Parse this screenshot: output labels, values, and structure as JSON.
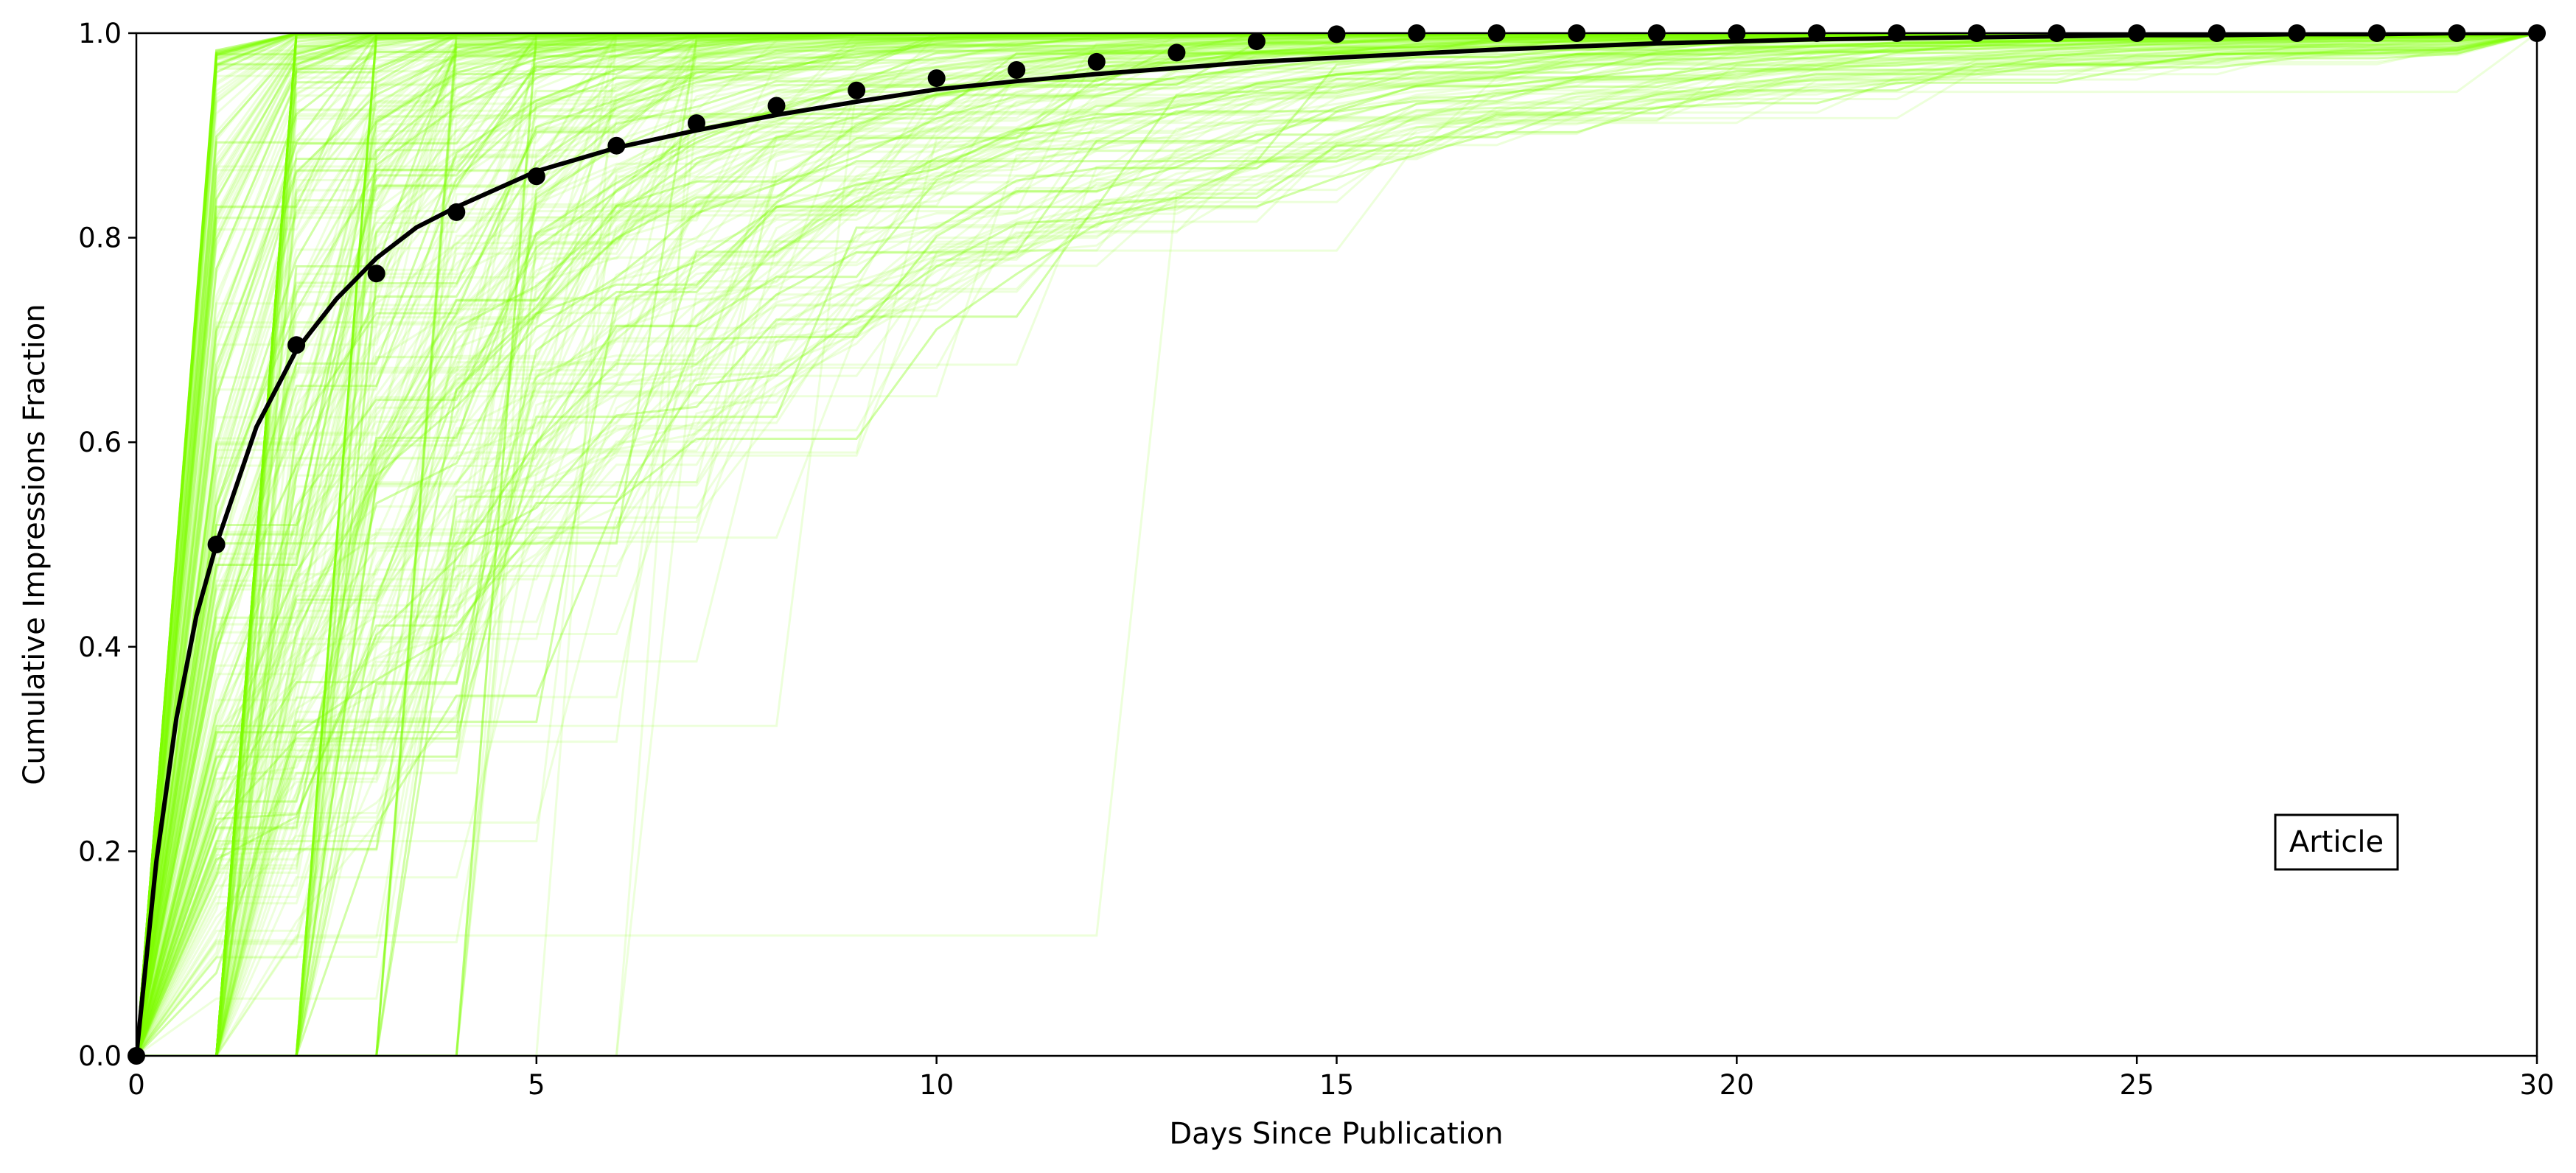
{
  "chart_data": {
    "type": "line",
    "title": "",
    "xlabel": "Days Since Publication",
    "ylabel": "Cumulative Impressions Fraction",
    "xlim": [
      0,
      30
    ],
    "ylim": [
      0,
      1
    ],
    "x_ticks": [
      0,
      5,
      10,
      15,
      20,
      25,
      30
    ],
    "y_ticks": [
      0.0,
      0.2,
      0.4,
      0.6,
      0.8,
      1.0
    ],
    "grid": false,
    "annotation": "Article",
    "colors": {
      "individual": "#7cfc00",
      "mean": "#000000"
    },
    "mean_points": {
      "x": [
        0,
        1,
        2,
        3,
        4,
        5,
        6,
        7,
        8,
        9,
        10,
        11,
        12,
        13,
        14,
        15,
        16,
        17,
        18,
        19,
        20,
        21,
        22,
        23,
        24,
        25,
        26,
        27,
        28,
        29,
        30
      ],
      "y": [
        0.0,
        0.5,
        0.695,
        0.765,
        0.825,
        0.86,
        0.89,
        0.912,
        0.929,
        0.944,
        0.956,
        0.964,
        0.972,
        0.981,
        0.992,
        0.999,
        1.0,
        1.0,
        1.0,
        1.0,
        1.0,
        1.0,
        1.0,
        1.0,
        1.0,
        1.0,
        1.0,
        1.0,
        1.0,
        1.0,
        1.0
      ]
    },
    "fit_curve": {
      "x": [
        0,
        0.25,
        0.5,
        0.75,
        1,
        1.5,
        2,
        2.5,
        3,
        3.5,
        4,
        5,
        6,
        7,
        8,
        9,
        10,
        11,
        12,
        13,
        14,
        15,
        16,
        17,
        18,
        19,
        20,
        21,
        22,
        23,
        24,
        25,
        26,
        27,
        28,
        29,
        30
      ],
      "y": [
        0.0,
        0.19,
        0.33,
        0.43,
        0.5,
        0.615,
        0.69,
        0.74,
        0.78,
        0.81,
        0.83,
        0.865,
        0.888,
        0.905,
        0.92,
        0.933,
        0.945,
        0.953,
        0.96,
        0.966,
        0.972,
        0.976,
        0.98,
        0.984,
        0.987,
        0.99,
        0.992,
        0.994,
        0.995,
        0.996,
        0.997,
        0.998,
        0.998,
        0.999,
        0.999,
        1.0,
        1.0
      ]
    },
    "individual_series_count": 400
  }
}
